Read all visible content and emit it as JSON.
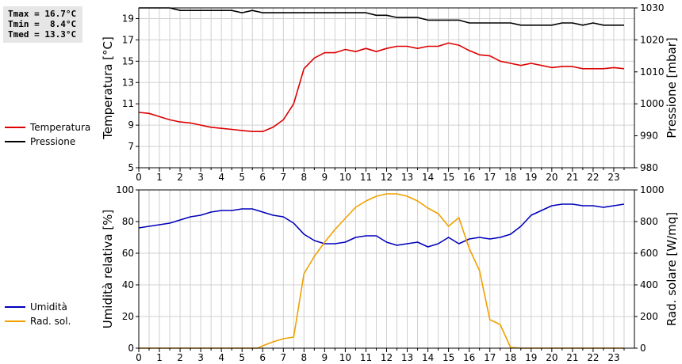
{
  "stats": {
    "tmax": "Tmax = 16.7°C",
    "tmin": "Tmin =  8.4°C",
    "tmed": "Tmed = 13.3°C"
  },
  "colors": {
    "temperature": "#dd0000",
    "pressure": "#000000",
    "humidity": "#0000bb",
    "solar": "#f0a000",
    "grid": "#d0d0d0"
  },
  "chart_data": [
    {
      "type": "line",
      "ylabel_left": "Temperatura [°C]",
      "ylabel_right": "Pressione [mbar]",
      "xlim": [
        0,
        24
      ],
      "ylim_left": [
        5,
        20
      ],
      "ylim_right": [
        980,
        1030
      ],
      "x_ticks": [
        "0",
        "1",
        "2",
        "3",
        "4",
        "5",
        "6",
        "7",
        "8",
        "9",
        "10",
        "11",
        "12",
        "13",
        "14",
        "15",
        "16",
        "17",
        "18",
        "19",
        "20",
        "21",
        "22",
        "23"
      ],
      "y_ticks_left": [
        "5",
        "7",
        "9",
        "11",
        "13",
        "15",
        "17",
        "19"
      ],
      "y_ticks_right": [
        "980",
        "990",
        "1000",
        "1010",
        "1020",
        "1030"
      ],
      "grid": true,
      "legend": [
        "Temperatura",
        "Pressione"
      ],
      "series": [
        {
          "name": "Temperatura",
          "axis": "left",
          "points": [
            [
              0,
              10.2
            ],
            [
              0.5,
              10.1
            ],
            [
              1,
              9.8
            ],
            [
              1.5,
              9.5
            ],
            [
              2,
              9.3
            ],
            [
              2.5,
              9.2
            ],
            [
              3,
              9.0
            ],
            [
              3.5,
              8.8
            ],
            [
              4,
              8.7
            ],
            [
              4.5,
              8.6
            ],
            [
              5,
              8.5
            ],
            [
              5.5,
              8.4
            ],
            [
              6,
              8.4
            ],
            [
              6.5,
              8.8
            ],
            [
              7,
              9.5
            ],
            [
              7.5,
              11.0
            ],
            [
              8,
              14.3
            ],
            [
              8.5,
              15.3
            ],
            [
              9,
              15.8
            ],
            [
              9.5,
              15.8
            ],
            [
              10,
              16.1
            ],
            [
              10.5,
              15.9
            ],
            [
              11,
              16.2
            ],
            [
              11.5,
              15.9
            ],
            [
              12,
              16.2
            ],
            [
              12.5,
              16.4
            ],
            [
              13,
              16.4
            ],
            [
              13.5,
              16.2
            ],
            [
              14,
              16.4
            ],
            [
              14.5,
              16.4
            ],
            [
              15,
              16.7
            ],
            [
              15.5,
              16.5
            ],
            [
              16,
              16.0
            ],
            [
              16.5,
              15.6
            ],
            [
              17,
              15.5
            ],
            [
              17.5,
              15.0
            ],
            [
              18,
              14.8
            ],
            [
              18.5,
              14.6
            ],
            [
              19,
              14.8
            ],
            [
              19.5,
              14.6
            ],
            [
              20,
              14.4
            ],
            [
              20.5,
              14.5
            ],
            [
              21,
              14.5
            ],
            [
              21.5,
              14.3
            ],
            [
              22,
              14.3
            ],
            [
              22.5,
              14.3
            ],
            [
              23,
              14.4
            ],
            [
              23.5,
              14.3
            ]
          ]
        },
        {
          "name": "Pressione",
          "axis": "right",
          "points": [
            [
              0,
              1030.5
            ],
            [
              1,
              1030.5
            ],
            [
              1.5,
              1030.2
            ],
            [
              2,
              1029.2
            ],
            [
              3,
              1029.2
            ],
            [
              4,
              1029.2
            ],
            [
              4.5,
              1029.2
            ],
            [
              5,
              1028.5
            ],
            [
              5.5,
              1029.2
            ],
            [
              6,
              1028.5
            ],
            [
              7,
              1028.5
            ],
            [
              8,
              1028.5
            ],
            [
              9,
              1028.5
            ],
            [
              10,
              1028.5
            ],
            [
              11,
              1028.5
            ],
            [
              11.5,
              1027.7
            ],
            [
              12,
              1027.7
            ],
            [
              12.5,
              1027.0
            ],
            [
              13,
              1027.0
            ],
            [
              13.5,
              1027.0
            ],
            [
              14,
              1026.2
            ],
            [
              15,
              1026.2
            ],
            [
              15.5,
              1026.2
            ],
            [
              16,
              1025.3
            ],
            [
              17,
              1025.3
            ],
            [
              18,
              1025.3
            ],
            [
              18.5,
              1024.6
            ],
            [
              19,
              1024.6
            ],
            [
              20,
              1024.6
            ],
            [
              20.5,
              1025.3
            ],
            [
              21,
              1025.3
            ],
            [
              21.5,
              1024.6
            ],
            [
              22,
              1025.3
            ],
            [
              22.5,
              1024.6
            ],
            [
              23,
              1024.6
            ],
            [
              23.5,
              1024.6
            ]
          ]
        }
      ]
    },
    {
      "type": "line",
      "ylabel_left": "Umidità relativa [%]",
      "ylabel_right": "Rad. solare [W/mq]",
      "xlim": [
        0,
        24
      ],
      "ylim_left": [
        0,
        100
      ],
      "ylim_right": [
        0,
        1000
      ],
      "x_ticks": [
        "0",
        "1",
        "2",
        "3",
        "4",
        "5",
        "6",
        "7",
        "8",
        "9",
        "10",
        "11",
        "12",
        "13",
        "14",
        "15",
        "16",
        "17",
        "18",
        "19",
        "20",
        "21",
        "22",
        "23"
      ],
      "y_ticks_left": [
        "0",
        "20",
        "40",
        "60",
        "80",
        "100"
      ],
      "y_ticks_right": [
        "0",
        "200",
        "400",
        "600",
        "800",
        "1000"
      ],
      "grid": true,
      "legend": [
        "Umidità",
        "Rad. sol."
      ],
      "series": [
        {
          "name": "Umidità",
          "axis": "left",
          "points": [
            [
              0,
              76
            ],
            [
              0.5,
              77
            ],
            [
              1,
              78
            ],
            [
              1.5,
              79
            ],
            [
              2,
              81
            ],
            [
              2.5,
              83
            ],
            [
              3,
              84
            ],
            [
              3.5,
              86
            ],
            [
              4,
              87
            ],
            [
              4.5,
              87
            ],
            [
              5,
              88
            ],
            [
              5.5,
              88
            ],
            [
              6,
              86
            ],
            [
              6.5,
              84
            ],
            [
              7,
              83
            ],
            [
              7.5,
              79
            ],
            [
              8,
              72
            ],
            [
              8.5,
              68
            ],
            [
              9,
              66
            ],
            [
              9.5,
              66
            ],
            [
              10,
              67
            ],
            [
              10.5,
              70
            ],
            [
              11,
              71
            ],
            [
              11.5,
              71
            ],
            [
              12,
              67
            ],
            [
              12.5,
              65
            ],
            [
              13,
              66
            ],
            [
              13.5,
              67
            ],
            [
              14,
              64
            ],
            [
              14.5,
              66
            ],
            [
              15,
              70
            ],
            [
              15.5,
              66
            ],
            [
              16,
              69
            ],
            [
              16.5,
              70
            ],
            [
              17,
              69
            ],
            [
              17.5,
              70
            ],
            [
              18,
              72
            ],
            [
              18.5,
              77
            ],
            [
              19,
              84
            ],
            [
              19.5,
              87
            ],
            [
              20,
              90
            ],
            [
              20.5,
              91
            ],
            [
              21,
              91
            ],
            [
              21.5,
              90
            ],
            [
              22,
              90
            ],
            [
              22.5,
              89
            ],
            [
              23,
              90
            ],
            [
              23.5,
              91
            ]
          ]
        },
        {
          "name": "Rad. sol.",
          "axis": "right",
          "points": [
            [
              0,
              0
            ],
            [
              1,
              0
            ],
            [
              2,
              0
            ],
            [
              3,
              0
            ],
            [
              4,
              0
            ],
            [
              5,
              0
            ],
            [
              5.75,
              0
            ],
            [
              6,
              15
            ],
            [
              6.5,
              40
            ],
            [
              7,
              60
            ],
            [
              7.5,
              70
            ],
            [
              8,
              470
            ],
            [
              8.5,
              580
            ],
            [
              9,
              670
            ],
            [
              9.5,
              750
            ],
            [
              10,
              820
            ],
            [
              10.5,
              890
            ],
            [
              11,
              930
            ],
            [
              11.5,
              960
            ],
            [
              12,
              975
            ],
            [
              12.5,
              975
            ],
            [
              13,
              960
            ],
            [
              13.5,
              930
            ],
            [
              14,
              885
            ],
            [
              14.5,
              850
            ],
            [
              15,
              770
            ],
            [
              15.5,
              825
            ],
            [
              16,
              630
            ],
            [
              16.5,
              490
            ],
            [
              17,
              180
            ],
            [
              17.5,
              150
            ],
            [
              18,
              5
            ],
            [
              18.5,
              0
            ],
            [
              19,
              0
            ],
            [
              20,
              0
            ],
            [
              21,
              0
            ],
            [
              22,
              0
            ],
            [
              23,
              0
            ],
            [
              23.5,
              0
            ]
          ]
        }
      ]
    }
  ]
}
